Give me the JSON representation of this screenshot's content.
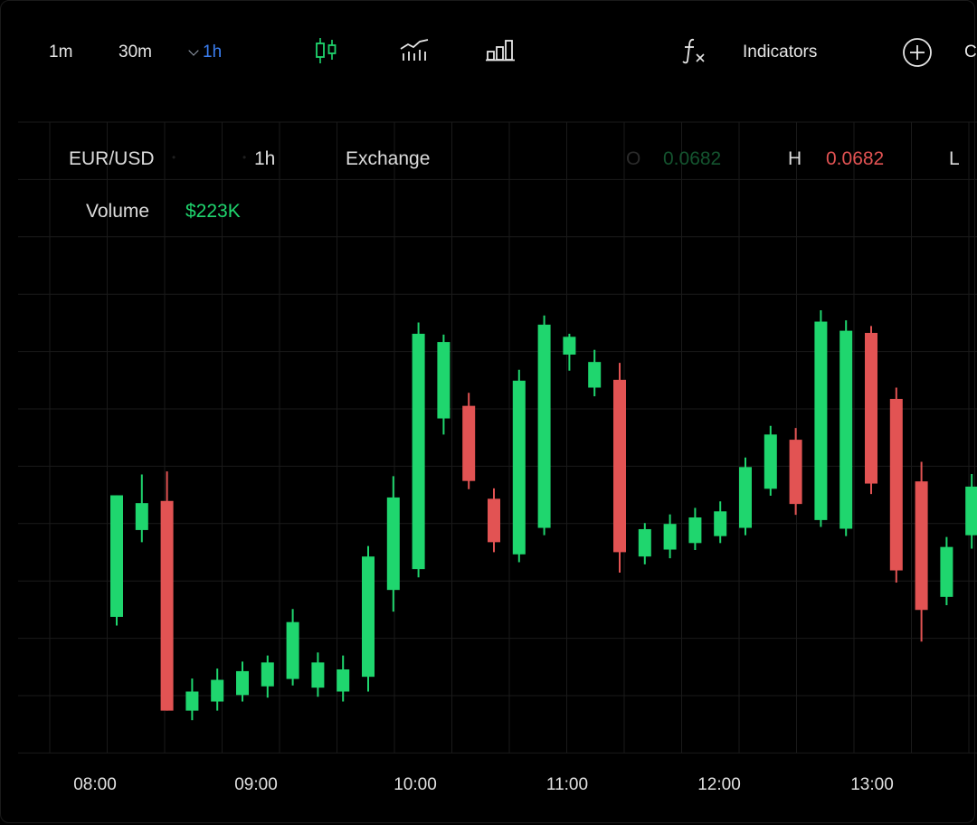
{
  "toolbar": {
    "intervals": [
      {
        "label": "1m",
        "active": false
      },
      {
        "label": "30m",
        "active": false
      },
      {
        "label": "1h",
        "active": true
      }
    ],
    "icons": [
      "candlestick-icon",
      "line-chart-icon",
      "bar-chart-icon",
      "function-icon"
    ],
    "indicators_label": "Indicators",
    "add_icon": "plus-circle-icon",
    "truncated_label": "C"
  },
  "legend": {
    "symbol": "EUR/USD",
    "interval": "1h",
    "source": "Exchange",
    "open_label": "O",
    "open_value": "0.0682",
    "high_label": "H",
    "high_value": "0.0682",
    "low_label": "L",
    "volume_label": "Volume",
    "volume_value": "$223K"
  },
  "colors": {
    "up": "#1fd66e",
    "down": "#e25353",
    "grid": "#1a1a1a",
    "accent": "#3b7ff2",
    "open_value": "#14542f",
    "high_value": "#e25353",
    "volume_value": "#1fd66e"
  },
  "chart_data": {
    "type": "candlestick",
    "x_ticks": [
      "08:00",
      "09:00",
      "10:00",
      "11:00",
      "12:00",
      "13:00"
    ],
    "y_range": [
      0,
      100
    ],
    "grid": true,
    "candles": [
      {
        "o": 24.6,
        "h": 52.6,
        "l": 22.6,
        "c": 52.6
      },
      {
        "o": 44.6,
        "h": 57.4,
        "l": 41.8,
        "c": 50.8
      },
      {
        "o": 51.3,
        "h": 58.1,
        "l": 3.0,
        "c": 3.0
      },
      {
        "o": 3.0,
        "h": 10.4,
        "l": 0.8,
        "c": 7.4
      },
      {
        "o": 5.1,
        "h": 12.7,
        "l": 3.0,
        "c": 10.1
      },
      {
        "o": 6.6,
        "h": 14.3,
        "l": 5.1,
        "c": 12.1
      },
      {
        "o": 8.6,
        "h": 15.7,
        "l": 6.0,
        "c": 14.1
      },
      {
        "o": 10.3,
        "h": 26.4,
        "l": 8.8,
        "c": 23.4
      },
      {
        "o": 8.3,
        "h": 16.4,
        "l": 6.2,
        "c": 14.1
      },
      {
        "o": 7.4,
        "h": 15.7,
        "l": 5.1,
        "c": 12.5
      },
      {
        "o": 10.8,
        "h": 40.9,
        "l": 7.4,
        "c": 38.5
      },
      {
        "o": 30.8,
        "h": 57.0,
        "l": 25.8,
        "c": 52.1
      },
      {
        "o": 35.6,
        "h": 92.4,
        "l": 33.7,
        "c": 89.8
      },
      {
        "o": 70.3,
        "h": 89.6,
        "l": 66.6,
        "c": 87.9
      },
      {
        "o": 73.2,
        "h": 76.2,
        "l": 54.0,
        "c": 55.9
      },
      {
        "o": 51.8,
        "h": 54.2,
        "l": 39.5,
        "c": 41.8
      },
      {
        "o": 39.0,
        "h": 81.5,
        "l": 37.2,
        "c": 79.0
      },
      {
        "o": 45.1,
        "h": 94.0,
        "l": 43.4,
        "c": 91.9
      },
      {
        "o": 85.0,
        "h": 89.8,
        "l": 81.3,
        "c": 89.1
      },
      {
        "o": 77.4,
        "h": 86.1,
        "l": 75.4,
        "c": 83.3
      },
      {
        "o": 79.2,
        "h": 83.1,
        "l": 34.8,
        "c": 39.5
      },
      {
        "o": 38.5,
        "h": 46.2,
        "l": 36.7,
        "c": 44.8
      },
      {
        "o": 40.1,
        "h": 48.2,
        "l": 38.1,
        "c": 46.0
      },
      {
        "o": 41.6,
        "h": 49.7,
        "l": 40.0,
        "c": 47.5
      },
      {
        "o": 43.2,
        "h": 51.2,
        "l": 41.6,
        "c": 48.9
      },
      {
        "o": 45.1,
        "h": 61.3,
        "l": 43.4,
        "c": 59.1
      },
      {
        "o": 54.1,
        "h": 68.6,
        "l": 52.5,
        "c": 66.6
      },
      {
        "o": 65.4,
        "h": 68.1,
        "l": 48.1,
        "c": 50.6
      },
      {
        "o": 46.9,
        "h": 95.2,
        "l": 45.3,
        "c": 92.6
      },
      {
        "o": 44.9,
        "h": 92.9,
        "l": 43.2,
        "c": 90.5
      },
      {
        "o": 90.0,
        "h": 91.6,
        "l": 52.9,
        "c": 55.3
      },
      {
        "o": 74.8,
        "h": 77.4,
        "l": 32.5,
        "c": 35.3
      },
      {
        "o": 55.8,
        "h": 60.3,
        "l": 18.9,
        "c": 26.2
      },
      {
        "o": 29.2,
        "h": 43.0,
        "l": 27.3,
        "c": 40.7
      },
      {
        "o": 43.4,
        "h": 57.5,
        "l": 40.3,
        "c": 54.6
      }
    ]
  }
}
